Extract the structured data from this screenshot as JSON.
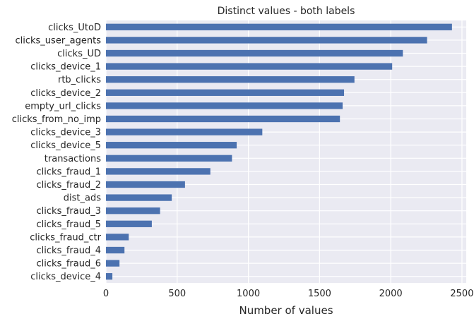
{
  "chart_data": {
    "type": "bar",
    "orientation": "horizontal",
    "title": "Distinct values - both labels",
    "xlabel": "Number of values",
    "ylabel": "",
    "xlim": [
      0,
      2530
    ],
    "xticks": [
      0,
      500,
      1000,
      1500,
      2000,
      2500
    ],
    "grid": true,
    "legend": "none",
    "colors": {
      "bar": "#4c72b0",
      "plot_background": "#eaeaf2",
      "grid": "#ffffff",
      "text": "#262626"
    },
    "categories": [
      "clicks_UtoD",
      "clicks_user_agents",
      "clicks_UD",
      "clicks_device_1",
      "rtb_clicks",
      "clicks_device_2",
      "empty_url_clicks",
      "clicks_from_no_imp",
      "clicks_device_3",
      "clicks_device_5",
      "transactions",
      "clicks_fraud_1",
      "clicks_fraud_2",
      "dist_ads",
      "clicks_fraud_3",
      "clicks_fraud_5",
      "clicks_fraud_ctr",
      "clicks_fraud_4",
      "clicks_fraud_6",
      "clicks_device_4"
    ],
    "values": [
      2430,
      2255,
      2085,
      2010,
      1745,
      1672,
      1662,
      1643,
      1098,
      918,
      885,
      733,
      555,
      462,
      380,
      322,
      160,
      130,
      95,
      45
    ]
  }
}
